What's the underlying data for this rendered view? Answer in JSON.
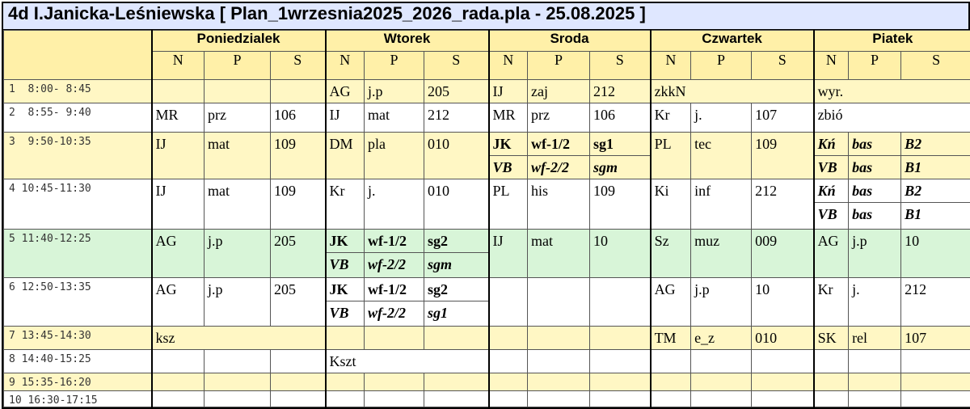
{
  "header": {
    "title": "4d I.Janicka-Leśniewska [ Plan_1wrzesnia2025_2026_rada.pla - 25.08.2025 ]"
  },
  "days": [
    "Poniedzialek",
    "Wtorek",
    "Sroda",
    "Czwartek",
    "Piatek"
  ],
  "columns": [
    "N",
    "P",
    "S"
  ],
  "rows": [
    {
      "time": "1  8:00- 8:45",
      "background": "#fff7c4",
      "days": [
        [],
        [
          {
            "n": "AG",
            "p": "j.p",
            "s": "205"
          }
        ],
        [
          {
            "n": "IJ",
            "p": "zaj",
            "s": "212"
          }
        ],
        [
          {
            "text": "zkkN"
          }
        ],
        [
          {
            "text": "wyr."
          }
        ]
      ]
    },
    {
      "time": "2  8:55- 9:40",
      "background": "#ffffff",
      "days": [
        [
          {
            "n": "MR",
            "p": "prz",
            "s": "106"
          }
        ],
        [
          {
            "n": "IJ",
            "p": "mat",
            "s": "212"
          }
        ],
        [
          {
            "n": "MR",
            "p": "prz",
            "s": "106"
          }
        ],
        [
          {
            "n": "Kr",
            "p": "j.",
            "s": "107"
          }
        ],
        [
          {
            "text": "zbió"
          }
        ]
      ]
    },
    {
      "time": "3  9:50-10:35",
      "background": "#fff7c4",
      "days": [
        [
          {
            "n": "IJ",
            "p": "mat",
            "s": "109"
          }
        ],
        [
          {
            "n": "DM",
            "p": "pla",
            "s": "010"
          }
        ],
        [
          {
            "n": "JK",
            "p": "wf-1/2",
            "s": "sg1",
            "bold": true
          },
          {
            "n": "VB",
            "p": "wf-2/2",
            "s": "sgm",
            "bold": true,
            "italic": true
          }
        ],
        [
          {
            "n": "PL",
            "p": "tec",
            "s": "109"
          }
        ],
        [
          {
            "n": "Kń",
            "p": "bas",
            "s": "B2",
            "bold": true,
            "italic": true
          },
          {
            "n": "VB",
            "p": "bas",
            "s": "B1",
            "bold": true,
            "italic": true
          }
        ]
      ]
    },
    {
      "time": "4 10:45-11:30",
      "background": "#ffffff",
      "days": [
        [
          {
            "n": "IJ",
            "p": "mat",
            "s": "109"
          }
        ],
        [
          {
            "n": "Kr",
            "p": "j.",
            "s": "010"
          }
        ],
        [
          {
            "n": "PL",
            "p": "his",
            "s": "109"
          }
        ],
        [
          {
            "n": "Ki",
            "p": "inf",
            "s": "212"
          }
        ],
        [
          {
            "n": "Kń",
            "p": "bas",
            "s": "B2",
            "bold": true,
            "italic": true
          },
          {
            "n": "VB",
            "p": "bas",
            "s": "B1",
            "bold": true,
            "italic": true
          }
        ]
      ]
    },
    {
      "time": "5 11:40-12:25",
      "background": "#d8f5d8",
      "days": [
        [
          {
            "n": "AG",
            "p": "j.p",
            "s": "205"
          }
        ],
        [
          {
            "n": "JK",
            "p": "wf-1/2",
            "s": "sg2",
            "bold": true
          },
          {
            "n": "VB",
            "p": "wf-2/2",
            "s": "sgm",
            "bold": true,
            "italic": true
          }
        ],
        [
          {
            "n": "IJ",
            "p": "mat",
            "s": "10"
          }
        ],
        [
          {
            "n": "Sz",
            "p": "muz",
            "s": "009"
          }
        ],
        [
          {
            "n": "AG",
            "p": "j.p",
            "s": "10"
          }
        ]
      ]
    },
    {
      "time": "6 12:50-13:35",
      "background": "#ffffff",
      "days": [
        [
          {
            "n": "AG",
            "p": "j.p",
            "s": "205"
          }
        ],
        [
          {
            "n": "JK",
            "p": "wf-1/2",
            "s": "sg2",
            "bold": true
          },
          {
            "n": "VB",
            "p": "wf-2/2",
            "s": "sg1",
            "bold": true,
            "italic": true
          }
        ],
        [],
        [
          {
            "n": "AG",
            "p": "j.p",
            "s": "10"
          }
        ],
        [
          {
            "n": "Kr",
            "p": "j.",
            "s": "212"
          }
        ]
      ]
    },
    {
      "time": "7 13:45-14:30",
      "background": "#fff7c4",
      "days": [
        [
          {
            "text": "ksz"
          }
        ],
        [],
        [],
        [
          {
            "n": "TM",
            "p": "e_z",
            "s": "010"
          }
        ],
        [
          {
            "n": "SK",
            "p": "rel",
            "s": "107"
          }
        ]
      ]
    },
    {
      "time": "8 14:40-15:25",
      "background": "#ffffff",
      "days": [
        [],
        [
          {
            "text": "Kszt"
          }
        ],
        [],
        [],
        []
      ]
    },
    {
      "time": "9 15:35-16:20",
      "background": "#fff7c4",
      "days": [
        [],
        [],
        [],
        [],
        []
      ]
    },
    {
      "time": "10 16:30-17:15",
      "background": "#ffffff",
      "days": [
        [],
        [],
        [],
        [],
        []
      ]
    }
  ]
}
